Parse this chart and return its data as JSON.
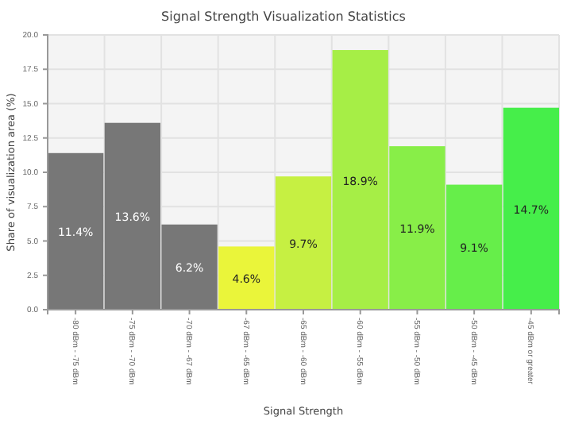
{
  "chart_data": {
    "type": "bar",
    "title": "Signal Strength Visualization Statistics",
    "xlabel": "Signal Strength",
    "ylabel": "Share of visualization area (%)",
    "categories": [
      "-80 dBm - -75 dBm",
      "-75 dBm - -70 dBm",
      "-70 dBm - -67 dBm",
      "-67 dBm - -65 dBm",
      "-65 dBm - -60 dBm",
      "-60 dBm - -55 dBm",
      "-55 dBm - -50 dBm",
      "-50 dBm - -45 dBm",
      "-45 dBm or greater"
    ],
    "values": [
      11.4,
      13.6,
      6.2,
      4.6,
      9.7,
      18.9,
      11.9,
      9.1,
      14.7
    ],
    "value_labels": [
      "11.4%",
      "13.6%",
      "6.2%",
      "4.6%",
      "9.7%",
      "18.9%",
      "11.9%",
      "9.1%",
      "14.7%"
    ],
    "colors": [
      "#777777",
      "#777777",
      "#777777",
      "#eaf53a",
      "#c6f042",
      "#a6ee46",
      "#88ee48",
      "#66ee4a",
      "#46ee4a"
    ],
    "ylim": [
      0,
      20
    ],
    "yticks": [
      {
        "value": 0,
        "label": "0.0"
      },
      {
        "value": 2.5,
        "label": "2.5"
      },
      {
        "value": 5,
        "label": "5.0"
      },
      {
        "value": 7.5,
        "label": "7.5"
      },
      {
        "value": 10,
        "label": "10.0"
      },
      {
        "value": 12.5,
        "label": "12.5"
      },
      {
        "value": 15,
        "label": "15.0"
      },
      {
        "value": 17.5,
        "label": "17.5"
      },
      {
        "value": 20,
        "label": "20.0"
      }
    ],
    "grid": true
  }
}
